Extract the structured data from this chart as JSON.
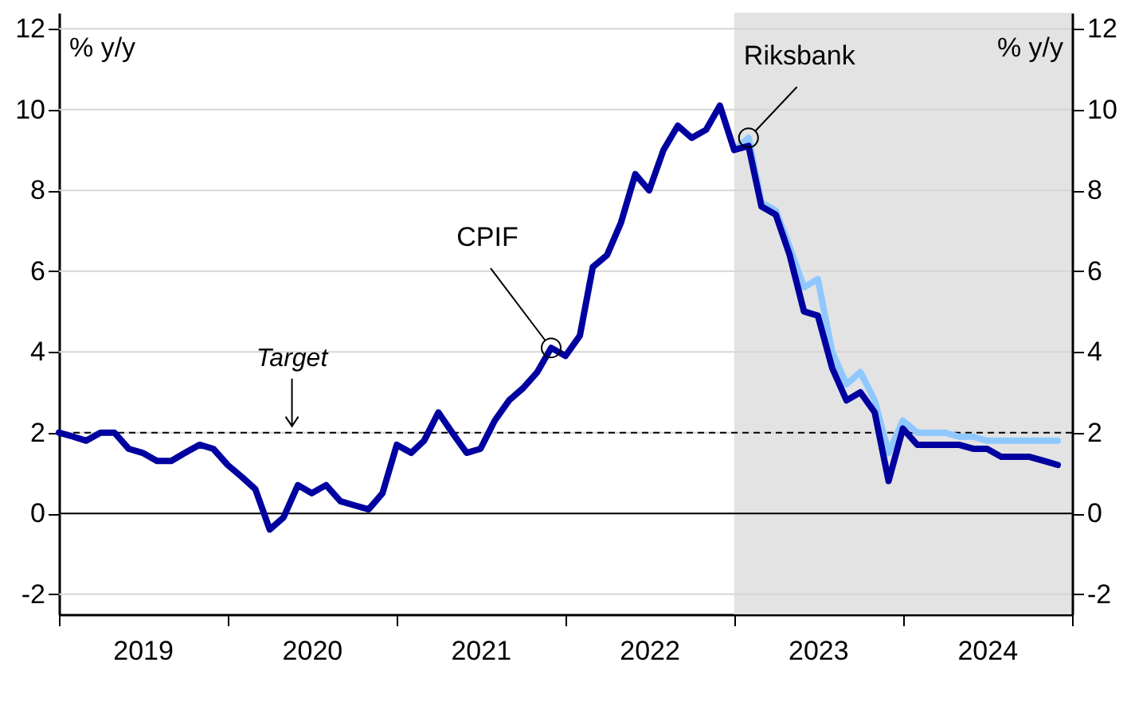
{
  "chart_data": {
    "type": "line",
    "ylabel": "% y/y",
    "y2label": "% y/y",
    "x": [
      "2019-01",
      "2019-02",
      "2019-03",
      "2019-04",
      "2019-05",
      "2019-06",
      "2019-07",
      "2019-08",
      "2019-09",
      "2019-10",
      "2019-11",
      "2019-12",
      "2020-01",
      "2020-02",
      "2020-03",
      "2020-04",
      "2020-05",
      "2020-06",
      "2020-07",
      "2020-08",
      "2020-09",
      "2020-10",
      "2020-11",
      "2020-12",
      "2021-01",
      "2021-02",
      "2021-03",
      "2021-04",
      "2021-05",
      "2021-06",
      "2021-07",
      "2021-08",
      "2021-09",
      "2021-10",
      "2021-11",
      "2021-12",
      "2022-01",
      "2022-02",
      "2022-03",
      "2022-04",
      "2022-05",
      "2022-06",
      "2022-07",
      "2022-08",
      "2022-09",
      "2022-10",
      "2022-11",
      "2022-12",
      "2023-01",
      "2023-02",
      "2023-03",
      "2023-04",
      "2023-05",
      "2023-06",
      "2023-07",
      "2023-08",
      "2023-09",
      "2023-10",
      "2023-11",
      "2023-12",
      "2024-01",
      "2024-02",
      "2024-03",
      "2024-04",
      "2024-05",
      "2024-06",
      "2024-07",
      "2024-08",
      "2024-09",
      "2024-10",
      "2024-11",
      "2024-12"
    ],
    "series": [
      {
        "color": "#8fc8ff",
        "x": [
          "2023-01",
          "2023-02",
          "2023-03",
          "2023-04",
          "2023-05",
          "2023-06",
          "2023-07",
          "2023-08",
          "2023-09",
          "2023-10",
          "2023-11",
          "2023-12",
          "2024-01",
          "2024-02",
          "2024-03",
          "2024-04",
          "2024-05",
          "2024-06",
          "2024-07",
          "2024-08",
          "2024-09",
          "2024-10",
          "2024-11",
          "2024-12"
        ],
        "values": [
          9.0,
          9.3,
          7.7,
          7.5,
          6.6,
          5.6,
          5.8,
          4.0,
          3.2,
          3.5,
          2.8,
          1.5,
          2.3,
          2.0,
          2.0,
          2.0,
          1.9,
          1.9,
          1.8,
          1.8,
          1.8,
          1.8,
          1.8,
          1.8
        ]
      },
      {
        "color": "#0000a0",
        "values": [
          2.0,
          1.9,
          1.8,
          2.0,
          2.0,
          1.6,
          1.5,
          1.3,
          1.3,
          1.5,
          1.7,
          1.6,
          1.2,
          0.9,
          0.6,
          -0.4,
          -0.1,
          0.7,
          0.5,
          0.7,
          0.3,
          0.2,
          0.1,
          0.5,
          1.7,
          1.5,
          1.8,
          2.5,
          2.0,
          1.5,
          1.6,
          2.3,
          2.8,
          3.1,
          3.5,
          4.1,
          3.9,
          4.4,
          6.1,
          6.4,
          7.2,
          8.4,
          8.0,
          9.0,
          9.6,
          9.3,
          9.5,
          10.1,
          9.0,
          9.1,
          7.6,
          7.4,
          6.4,
          5.0,
          4.9,
          3.6,
          2.8,
          3.0,
          2.5,
          0.8,
          2.1,
          1.7,
          1.7,
          1.7,
          1.7,
          1.6,
          1.6,
          1.4,
          1.4,
          1.4,
          1.3,
          1.2
        ]
      }
    ],
    "annotations": [
      {
        "text": "CPIF",
        "x": "2021-12",
        "y": 4.1
      },
      {
        "text": "Riksbank",
        "x": "2023-02",
        "y": 9.3
      }
    ],
    "xlim": [
      "2019-01",
      "2025-01"
    ],
    "xticks": [
      {
        "value": "2019-01",
        "label": null
      },
      {
        "value": "2019-07",
        "label": "2019"
      },
      {
        "value": "2020-01",
        "label": null
      },
      {
        "value": "2020-07",
        "label": "2020"
      },
      {
        "value": "2021-01",
        "label": null
      },
      {
        "value": "2021-07",
        "label": "2021"
      },
      {
        "value": "2022-01",
        "label": null
      },
      {
        "value": "2022-07",
        "label": "2022"
      },
      {
        "value": "2023-01",
        "label": null
      },
      {
        "value": "2023-07",
        "label": "2023"
      },
      {
        "value": "2024-01",
        "label": null
      },
      {
        "value": "2024-07",
        "label": "2024"
      },
      {
        "value": "2025-01",
        "label": null
      }
    ],
    "ylim": [
      -2.5,
      12.4
    ],
    "yticks": [
      -2,
      0,
      2,
      4,
      6,
      8,
      10,
      12
    ],
    "y2lim": [
      -2.5,
      12.4
    ],
    "y2ticks": [
      -2,
      0,
      2,
      4,
      6,
      8,
      10,
      12
    ],
    "ref_lines": [
      {
        "axis": "y",
        "value": 2,
        "label": "Target",
        "line_style": "dashed",
        "color": "#000000"
      },
      {
        "axis": "y",
        "value": 0,
        "color": "#000000"
      }
    ],
    "bands": [
      {
        "axis": "x",
        "from": "2023-01",
        "to": "2025-01",
        "color": "#e3e3e3"
      }
    ],
    "grid": "y"
  }
}
